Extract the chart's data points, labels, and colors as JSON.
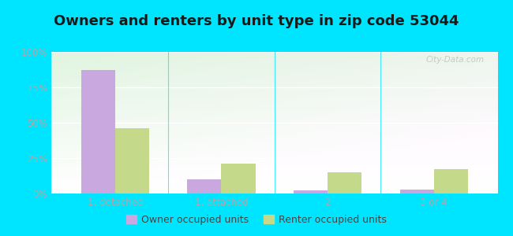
{
  "title": "Owners and renters by unit type in zip code 53044",
  "categories": [
    "1, detached",
    "1, attached",
    "2",
    "3 or 4"
  ],
  "owner_values": [
    87,
    10,
    2,
    3
  ],
  "renter_values": [
    46,
    21,
    15,
    17
  ],
  "owner_color": "#c9a8e0",
  "renter_color": "#c5d98a",
  "outer_bg": "#00e5ff",
  "plot_bg_topleft": "#c8e8b0",
  "plot_bg_topright": "#f0fce8",
  "plot_bg_bottom": "#f8fef2",
  "ylim": [
    0,
    100
  ],
  "yticks": [
    0,
    25,
    50,
    75,
    100
  ],
  "ytick_labels": [
    "0%",
    "25%",
    "50%",
    "75%",
    "100%"
  ],
  "legend_owner": "Owner occupied units",
  "legend_renter": "Renter occupied units",
  "title_fontsize": 13,
  "tick_fontsize": 8.5,
  "legend_fontsize": 9,
  "bar_width": 0.32,
  "watermark": "City-Data.com"
}
